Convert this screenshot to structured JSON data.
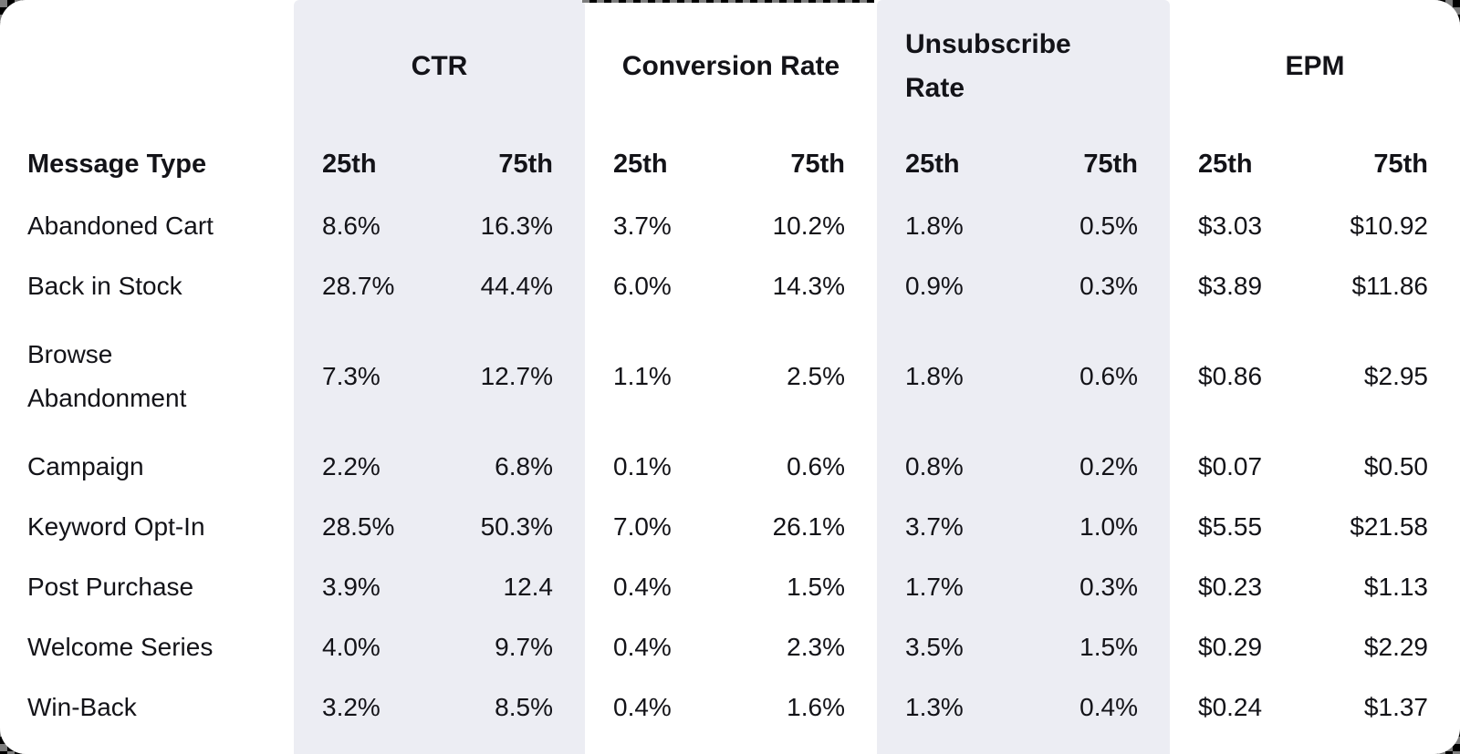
{
  "table": {
    "row_header": "Message Type",
    "groups": [
      {
        "label": "CTR",
        "sub": [
          "25th",
          "75th"
        ]
      },
      {
        "label": "Conversion Rate",
        "sub": [
          "25th",
          "75th"
        ]
      },
      {
        "label": "Unsubscribe Rate",
        "sub": [
          "25th",
          "75th"
        ]
      },
      {
        "label": "EPM",
        "sub": [
          "25th",
          "75th"
        ]
      }
    ],
    "rows": [
      {
        "type": "Abandoned Cart",
        "ctr": [
          "8.6%",
          "16.3%"
        ],
        "conversion": [
          "3.7%",
          "10.2%"
        ],
        "unsubscribe": [
          "1.8%",
          "0.5%"
        ],
        "epm": [
          "$3.03",
          "$10.92"
        ]
      },
      {
        "type": "Back in Stock",
        "ctr": [
          "28.7%",
          "44.4%"
        ],
        "conversion": [
          "6.0%",
          "14.3%"
        ],
        "unsubscribe": [
          "0.9%",
          "0.3%"
        ],
        "epm": [
          "$3.89",
          "$11.86"
        ]
      },
      {
        "type": "Browse Abandonment",
        "ctr": [
          "7.3%",
          "12.7%"
        ],
        "conversion": [
          "1.1%",
          "2.5%"
        ],
        "unsubscribe": [
          "1.8%",
          "0.6%"
        ],
        "epm": [
          "$0.86",
          "$2.95"
        ]
      },
      {
        "type": "Campaign",
        "ctr": [
          "2.2%",
          "6.8%"
        ],
        "conversion": [
          "0.1%",
          "0.6%"
        ],
        "unsubscribe": [
          "0.8%",
          "0.2%"
        ],
        "epm": [
          "$0.07",
          "$0.50"
        ]
      },
      {
        "type": "Keyword Opt-In",
        "ctr": [
          "28.5%",
          "50.3%"
        ],
        "conversion": [
          "7.0%",
          "26.1%"
        ],
        "unsubscribe": [
          "3.7%",
          "1.0%"
        ],
        "epm": [
          "$5.55",
          "$21.58"
        ]
      },
      {
        "type": "Post Purchase",
        "ctr": [
          "3.9%",
          "12.4"
        ],
        "conversion": [
          "0.4%",
          "1.5%"
        ],
        "unsubscribe": [
          "1.7%",
          "0.3%"
        ],
        "epm": [
          "$0.23",
          "$1.13"
        ]
      },
      {
        "type": "Welcome Series",
        "ctr": [
          "4.0%",
          "9.7%"
        ],
        "conversion": [
          "0.4%",
          "2.3%"
        ],
        "unsubscribe": [
          "3.5%",
          "1.5%"
        ],
        "epm": [
          "$0.29",
          "$2.29"
        ]
      },
      {
        "type": "Win-Back",
        "ctr": [
          "3.2%",
          "8.5%"
        ],
        "conversion": [
          "0.4%",
          "1.6%"
        ],
        "unsubscribe": [
          "1.3%",
          "0.4%"
        ],
        "epm": [
          "$0.24",
          "$1.37"
        ]
      }
    ],
    "colors": {
      "band": "#ECEDF3",
      "card": "#FFFFFF",
      "text": "#131318"
    }
  },
  "chart_data": {
    "type": "table",
    "title": "Message type benchmarks: CTR, Conversion Rate, Unsubscribe Rate, EPM (25th and 75th percentiles)",
    "column_groups": [
      "CTR",
      "Conversion Rate",
      "Unsubscribe Rate",
      "EPM"
    ],
    "columns": [
      "Message Type",
      "CTR 25th",
      "CTR 75th",
      "Conversion Rate 25th",
      "Conversion Rate 75th",
      "Unsubscribe Rate 25th",
      "Unsubscribe Rate 75th",
      "EPM 25th",
      "EPM 75th"
    ],
    "rows": [
      [
        "Abandoned Cart",
        "8.6%",
        "16.3%",
        "3.7%",
        "10.2%",
        "1.8%",
        "0.5%",
        "$3.03",
        "$10.92"
      ],
      [
        "Back in Stock",
        "28.7%",
        "44.4%",
        "6.0%",
        "14.3%",
        "0.9%",
        "0.3%",
        "$3.89",
        "$11.86"
      ],
      [
        "Browse Abandonment",
        "7.3%",
        "12.7%",
        "1.1%",
        "2.5%",
        "1.8%",
        "0.6%",
        "$0.86",
        "$2.95"
      ],
      [
        "Campaign",
        "2.2%",
        "6.8%",
        "0.1%",
        "0.6%",
        "0.8%",
        "0.2%",
        "$0.07",
        "$0.50"
      ],
      [
        "Keyword Opt-In",
        "28.5%",
        "50.3%",
        "7.0%",
        "26.1%",
        "3.7%",
        "1.0%",
        "$5.55",
        "$21.58"
      ],
      [
        "Post Purchase",
        "3.9%",
        "12.4",
        "0.4%",
        "1.5%",
        "1.7%",
        "0.3%",
        "$0.23",
        "$1.13"
      ],
      [
        "Welcome Series",
        "4.0%",
        "9.7%",
        "0.4%",
        "2.3%",
        "3.5%",
        "1.5%",
        "$0.29",
        "$2.29"
      ],
      [
        "Win-Back",
        "3.2%",
        "8.5%",
        "0.4%",
        "1.6%",
        "1.3%",
        "0.4%",
        "$0.24",
        "$1.37"
      ]
    ]
  }
}
